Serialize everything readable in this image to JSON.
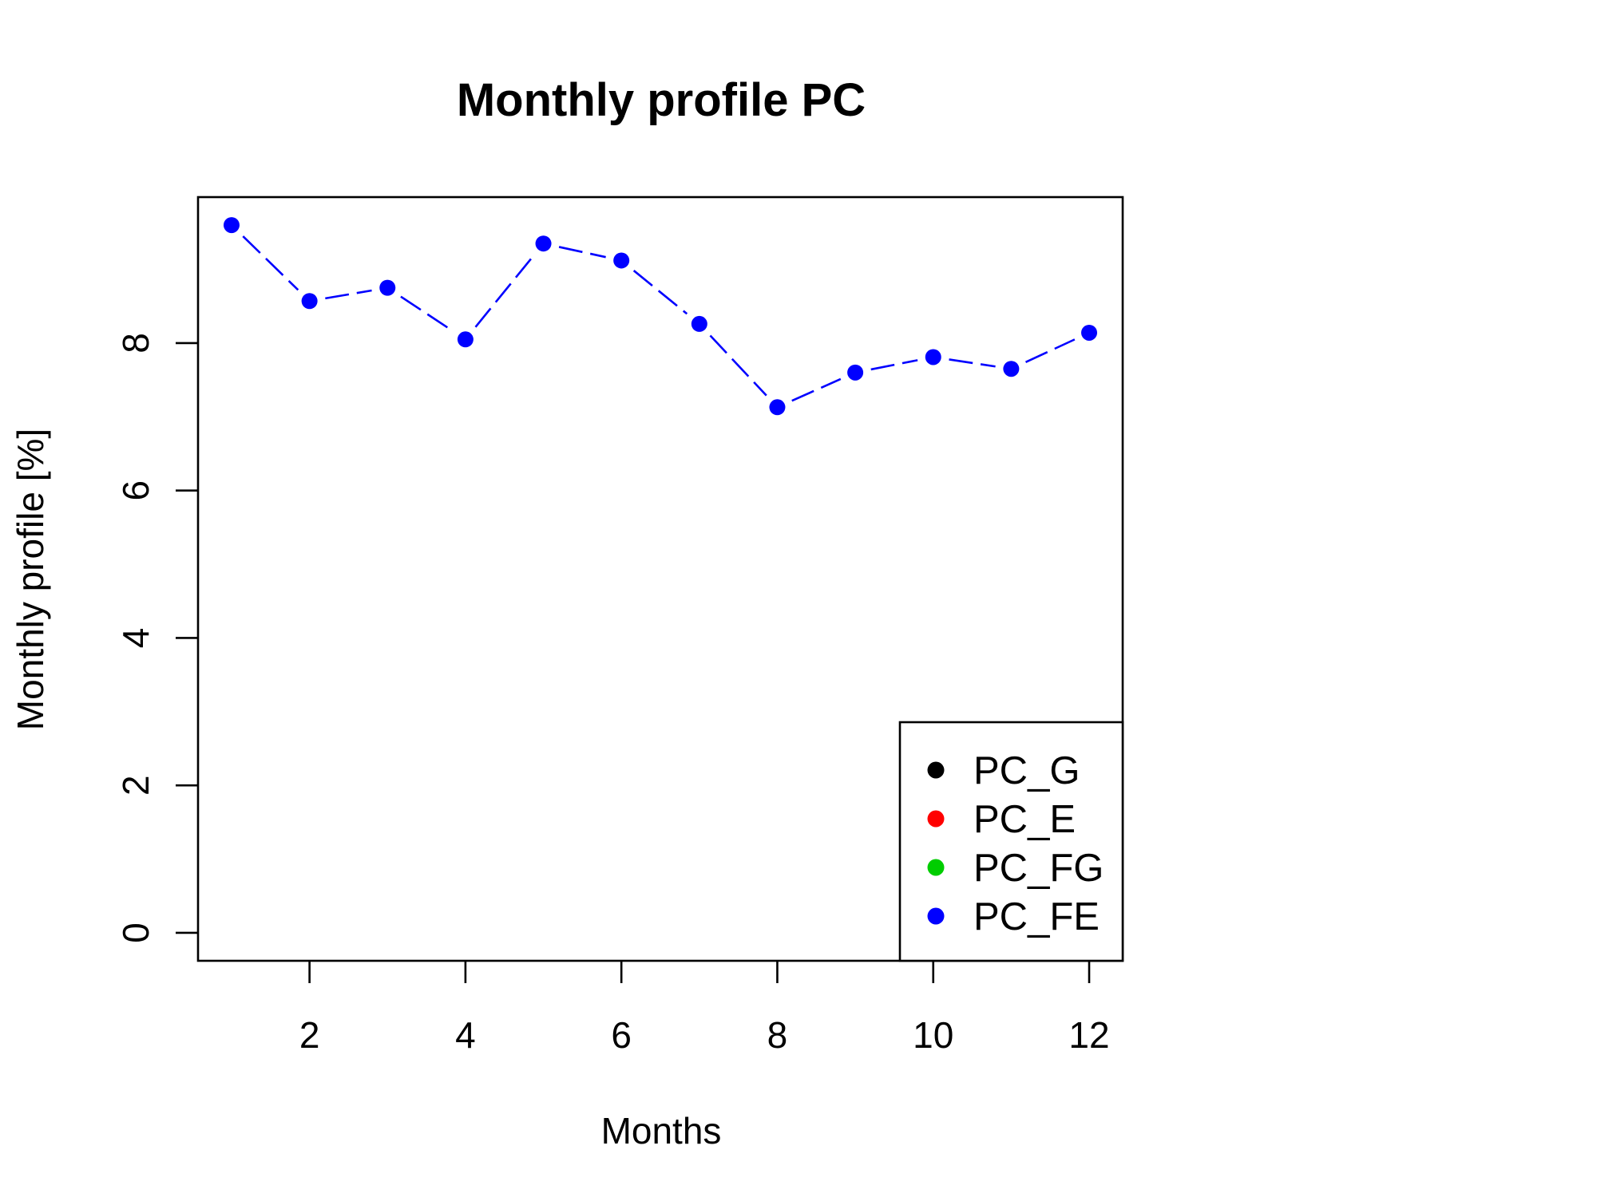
{
  "chart_data": {
    "type": "line",
    "title": "Monthly profile PC",
    "xlabel": "Months",
    "ylabel": "Monthly profile [%]",
    "xlim": [
      0.57,
      12.43
    ],
    "ylim": [
      -0.38,
      9.98
    ],
    "x_ticks": [
      2,
      4,
      6,
      8,
      10,
      12
    ],
    "y_ticks": [
      0,
      2,
      4,
      6,
      8
    ],
    "grid": false,
    "legend_position": "bottom-right",
    "series": [
      {
        "name": "PC_G",
        "color": "#000000",
        "x": [],
        "values": []
      },
      {
        "name": "PC_E",
        "color": "#ff0000",
        "x": [],
        "values": []
      },
      {
        "name": "PC_FG",
        "color": "#00cd00",
        "x": [],
        "values": []
      },
      {
        "name": "PC_FE",
        "color": "#0000ff",
        "line_style": "dashed",
        "x": [
          1,
          2,
          3,
          4,
          5,
          6,
          7,
          8,
          9,
          10,
          11,
          12
        ],
        "values": [
          9.6,
          8.57,
          8.75,
          8.05,
          9.35,
          9.12,
          8.26,
          7.13,
          7.6,
          7.81,
          7.65,
          8.14
        ]
      }
    ]
  }
}
